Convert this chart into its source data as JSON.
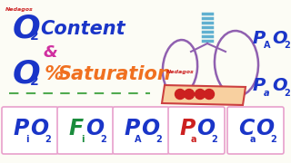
{
  "bg_color": "#fcfcf5",
  "blue_color": "#1a35c8",
  "orange_color": "#f07020",
  "green_color": "#1a8c3c",
  "red_color": "#cc2020",
  "pink_border": "#e8a0cc",
  "magenta_color": "#d030a0",
  "lung_color": "#9060b0",
  "trachea_color": "#60b0d0",
  "blood_tube_fill": "#f8d0a0",
  "blood_tube_edge": "#cc4040",
  "blood_dot_color": "#cc2020",
  "logo_color": "#cc2020",
  "boxes": [
    {
      "big": "P",
      "sub": "i",
      "o2_color": "#1a35c8",
      "big_color": "#1a35c8"
    },
    {
      "big": "F",
      "sub": "i",
      "o2_color": "#1a35c8",
      "big_color": "#1a8c3c"
    },
    {
      "big": "P",
      "sub": "A",
      "o2_color": "#1a35c8",
      "big_color": "#1a35c8"
    },
    {
      "big": "P",
      "sub": "a",
      "o2_color": "#1a35c8",
      "big_color": "#cc2020"
    },
    {
      "big": "C",
      "sub": "a",
      "o2_color": "#1a35c8",
      "big_color": "#1a35c8"
    }
  ]
}
